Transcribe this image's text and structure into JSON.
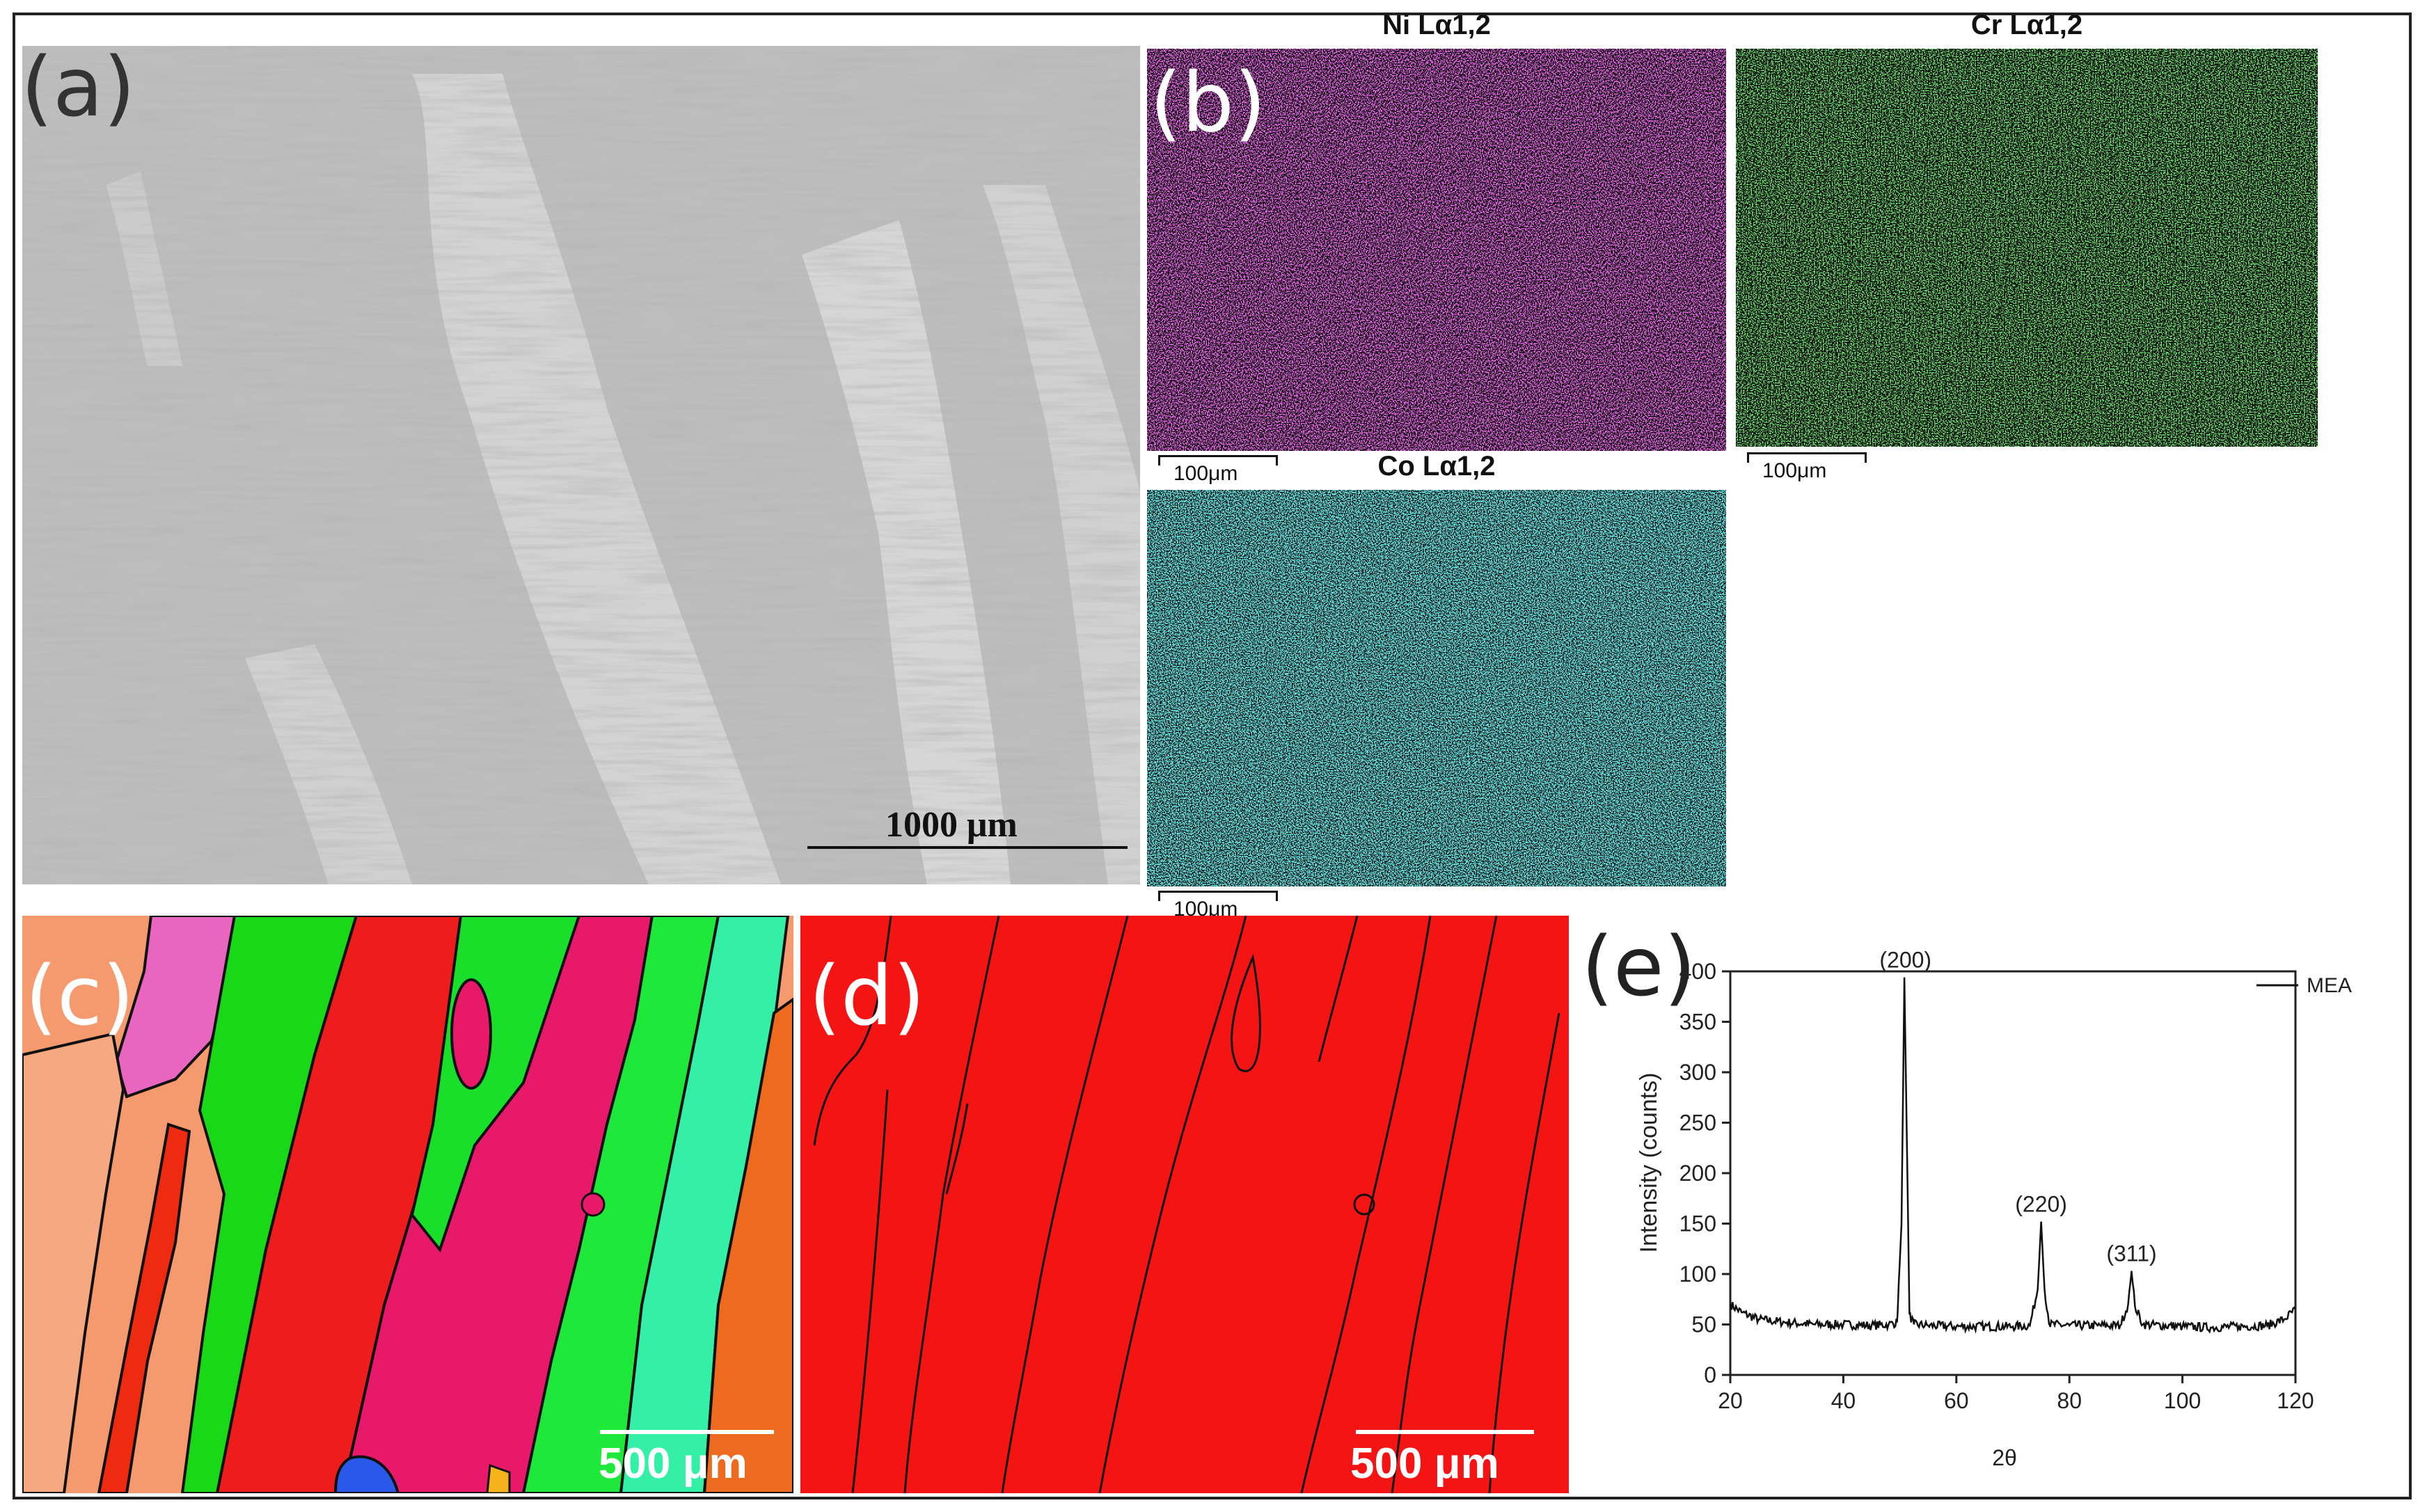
{
  "panels": {
    "a": {
      "label": "(a)",
      "scale_bar": "1000 μm"
    },
    "b": {
      "label": "(b)",
      "maps": [
        {
          "title": "Ni Lα1,2",
          "scale_bar": "100μm",
          "color": "#ff2bff"
        },
        {
          "title": "Cr Lα1,2",
          "scale_bar": "100μm",
          "color": "#2ed12e"
        },
        {
          "title": "Co Lα1,2",
          "scale_bar": "100μm",
          "color": "#27d8d8"
        }
      ]
    },
    "c": {
      "label": "(c)",
      "scale_bar": "500 μm"
    },
    "d": {
      "label": "(d)",
      "scale_bar": "500 μm"
    },
    "e": {
      "label": "(e)"
    }
  },
  "chart_data": {
    "type": "line",
    "title": "",
    "xlabel": "2θ",
    "ylabel": "Intensity (counts)",
    "xlim": [
      20,
      120
    ],
    "ylim": [
      0,
      400
    ],
    "xticks": [
      20,
      40,
      60,
      80,
      100,
      120
    ],
    "yticks": [
      0,
      50,
      100,
      150,
      200,
      250,
      300,
      350,
      400
    ],
    "legend": {
      "placement": "top-right"
    },
    "series": [
      {
        "name": "MEA",
        "x": [
          20,
          22,
          25,
          30,
          35,
          40,
          45,
          48,
          49.5,
          50.3,
          50.8,
          51.2,
          51.7,
          52.5,
          55,
          60,
          65,
          70,
          73,
          74.4,
          75,
          75.6,
          76.5,
          80,
          85,
          89,
          90.4,
          91,
          91.6,
          93,
          100,
          105,
          110,
          115,
          118,
          120
        ],
        "y": [
          70,
          62,
          55,
          52,
          50,
          50,
          49,
          50,
          52,
          150,
          394,
          250,
          60,
          50,
          49,
          48,
          48,
          48,
          49,
          85,
          152,
          85,
          50,
          49,
          49,
          49,
          70,
          103,
          68,
          50,
          48,
          47,
          48,
          49,
          55,
          65
        ]
      }
    ],
    "annotations": [
      {
        "text": "(200)",
        "x": 51,
        "y": 394
      },
      {
        "text": "(220)",
        "x": 75,
        "y": 152
      },
      {
        "text": "(311)",
        "x": 91,
        "y": 103
      }
    ]
  }
}
